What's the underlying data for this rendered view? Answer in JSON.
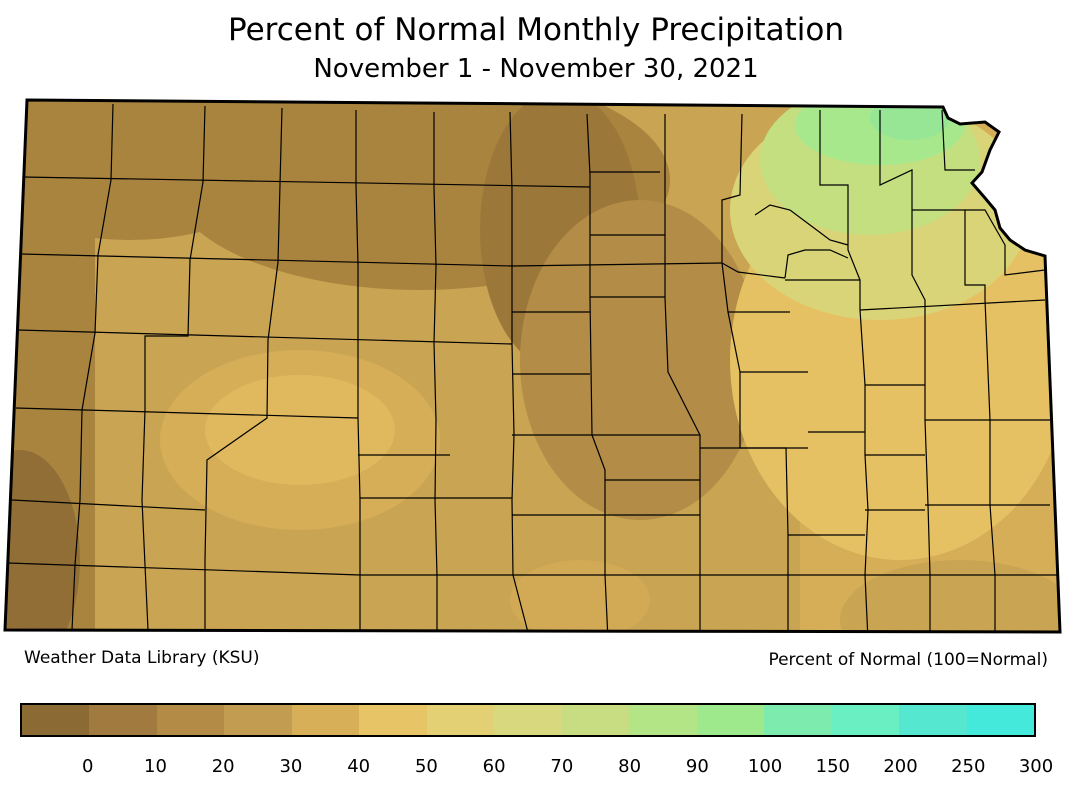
{
  "title": "Percent of Normal Monthly Precipitation",
  "subtitle": "November 1 - November 30, 2021",
  "credit": "Weather Data Library (KSU)",
  "units_note": "Percent of Normal (100=Normal)",
  "legend": {
    "colors": [
      "#8c6a34",
      "#a07a3e",
      "#b38b47",
      "#c29c50",
      "#d6af58",
      "#e7c466",
      "#e3d074",
      "#d8d87e",
      "#c8dd82",
      "#b3e486",
      "#9ee98c",
      "#7eebae",
      "#6aefc3",
      "#55e7cf",
      "#45e9dc"
    ],
    "ticks": [
      "0",
      "10",
      "20",
      "30",
      "40",
      "50",
      "60",
      "70",
      "80",
      "90",
      "100",
      "150",
      "200",
      "250",
      "300"
    ]
  },
  "map_colors": {
    "base": "#c9a452",
    "very_dry": "#8e6b34",
    "dry": "#a9843f",
    "moderate": "#b8924a",
    "lighter": "#d6ae58",
    "near_40": "#e5c163",
    "wet_60": "#d9d477",
    "wet_80": "#c4df80",
    "wet_90": "#a8e88c",
    "outline": "#000000"
  }
}
